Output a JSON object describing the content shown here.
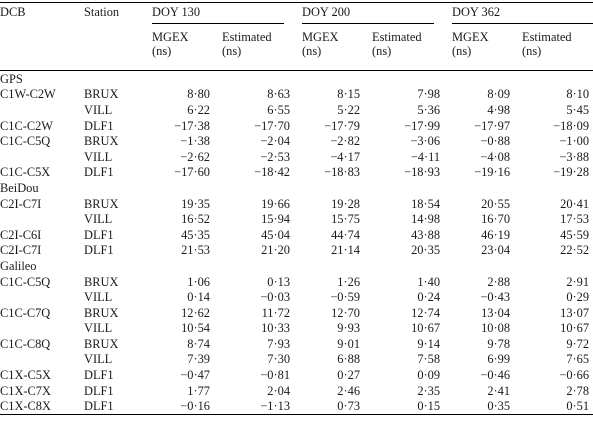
{
  "header": {
    "dcb_label": "DCB",
    "station_label": "Station",
    "groups": [
      "DOY 130",
      "DOY 200",
      "DOY 362"
    ],
    "sub_mgex": [
      "MGEX",
      "(ns)"
    ],
    "sub_est": [
      "Estimated",
      "(ns)"
    ]
  },
  "sections": [
    {
      "title": "GPS",
      "rows": [
        {
          "dcb": "C1W-C2W",
          "station": "BRUX",
          "v": [
            "8·80",
            "8·63",
            "8·15",
            "7·98",
            "8·09",
            "8·10"
          ]
        },
        {
          "dcb": "",
          "station": "VILL",
          "v": [
            "6·22",
            "6·55",
            "5·22",
            "5·36",
            "4·98",
            "5·45"
          ]
        },
        {
          "dcb": "C1C-C2W",
          "station": "DLF1",
          "v": [
            "−17·38",
            "−17·70",
            "−17·79",
            "−17·99",
            "−17·97",
            "−18·09"
          ]
        },
        {
          "dcb": "C1C-C5Q",
          "station": "BRUX",
          "v": [
            "−1·38",
            "−2·04",
            "−2·82",
            "−3·06",
            "−0·88",
            "−1·00"
          ]
        },
        {
          "dcb": "",
          "station": "VILL",
          "v": [
            "−2·62",
            "−2·53",
            "−4·17",
            "−4·11",
            "−4·08",
            "−3·88"
          ]
        },
        {
          "dcb": "C1C-C5X",
          "station": "DLF1",
          "v": [
            "−17·60",
            "−18·42",
            "−18·83",
            "−18·93",
            "−19·16",
            "−19·28"
          ]
        }
      ]
    },
    {
      "title": "BeiDou",
      "rows": [
        {
          "dcb": "C2I-C7I",
          "station": "BRUX",
          "v": [
            "19·35",
            "19·66",
            "19·28",
            "18·54",
            "20·55",
            "20·41"
          ]
        },
        {
          "dcb": "",
          "station": "VILL",
          "v": [
            "16·52",
            "15·94",
            "15·75",
            "14·98",
            "16·70",
            "17·53"
          ]
        },
        {
          "dcb": "C2I-C6I",
          "station": "DLF1",
          "v": [
            "45·35",
            "45·04",
            "44·74",
            "43·88",
            "46·19",
            "45·59"
          ]
        },
        {
          "dcb": "C2I-C7I",
          "station": "DLF1",
          "v": [
            "21·53",
            "21·20",
            "21·14",
            "20·35",
            "23·04",
            "22·52"
          ]
        }
      ]
    },
    {
      "title": "Galileo",
      "rows": [
        {
          "dcb": "C1C-C5Q",
          "station": "BRUX",
          "v": [
            "1·06",
            "0·13",
            "1·26",
            "1·40",
            "2·88",
            "2·91"
          ]
        },
        {
          "dcb": "",
          "station": "VILL",
          "v": [
            "0·14",
            "−0·03",
            "−0·59",
            "0·24",
            "−0·43",
            "0·29"
          ]
        },
        {
          "dcb": "C1C-C7Q",
          "station": "BRUX",
          "v": [
            "12·62",
            "11·72",
            "12·70",
            "12·74",
            "13·04",
            "13·07"
          ]
        },
        {
          "dcb": "",
          "station": "VILL",
          "v": [
            "10·54",
            "10·33",
            "9·93",
            "10·67",
            "10·08",
            "10·67"
          ]
        },
        {
          "dcb": "C1C-C8Q",
          "station": "BRUX",
          "v": [
            "8·74",
            "7·93",
            "9·01",
            "9·14",
            "9·78",
            "9·72"
          ]
        },
        {
          "dcb": "",
          "station": "VILL",
          "v": [
            "7·39",
            "7·30",
            "6·88",
            "7·58",
            "6·99",
            "7·65"
          ]
        },
        {
          "dcb": "C1X-C5X",
          "station": "DLF1",
          "v": [
            "−0·47",
            "−0·81",
            "0·27",
            "0·09",
            "−0·46",
            "−0·66"
          ]
        },
        {
          "dcb": "C1X-C7X",
          "station": "DLF1",
          "v": [
            "1·77",
            "2·04",
            "2·46",
            "2·35",
            "2·41",
            "2·78"
          ]
        },
        {
          "dcb": "C1X-C8X",
          "station": "DLF1",
          "v": [
            "−0·16",
            "−1·13",
            "0·73",
            "0·15",
            "0·35",
            "0·51"
          ]
        }
      ]
    }
  ]
}
